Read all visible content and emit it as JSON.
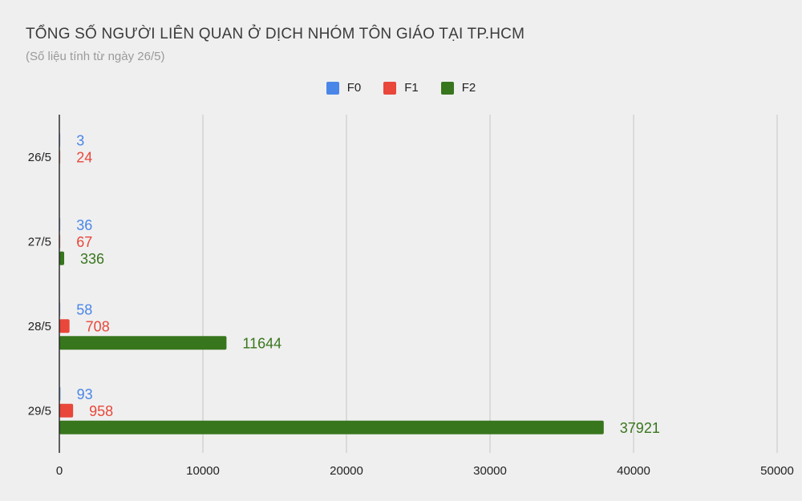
{
  "chart_data": {
    "type": "bar",
    "orientation": "horizontal",
    "title": "TỔNG SỐ NGƯỜI LIÊN QUAN Ở DỊCH NHÓM TÔN GIÁO TẠI TP.HCM",
    "subtitle": "(Số liệu tính từ ngày 26/5)",
    "categories": [
      "26/5",
      "27/5",
      "28/5",
      "29/5"
    ],
    "series": [
      {
        "name": "F0",
        "color": "#4a86e8",
        "values": [
          3,
          36,
          58,
          93
        ]
      },
      {
        "name": "F1",
        "color": "#e8473a",
        "values": [
          24,
          67,
          708,
          958
        ]
      },
      {
        "name": "F2",
        "color": "#38761d",
        "values": [
          null,
          336,
          11644,
          37921
        ]
      }
    ],
    "xlim": [
      0,
      50000
    ],
    "xticks": [
      0,
      10000,
      20000,
      30000,
      40000,
      50000
    ],
    "grid": true,
    "legend_position": "top-center",
    "data_labels": true
  }
}
